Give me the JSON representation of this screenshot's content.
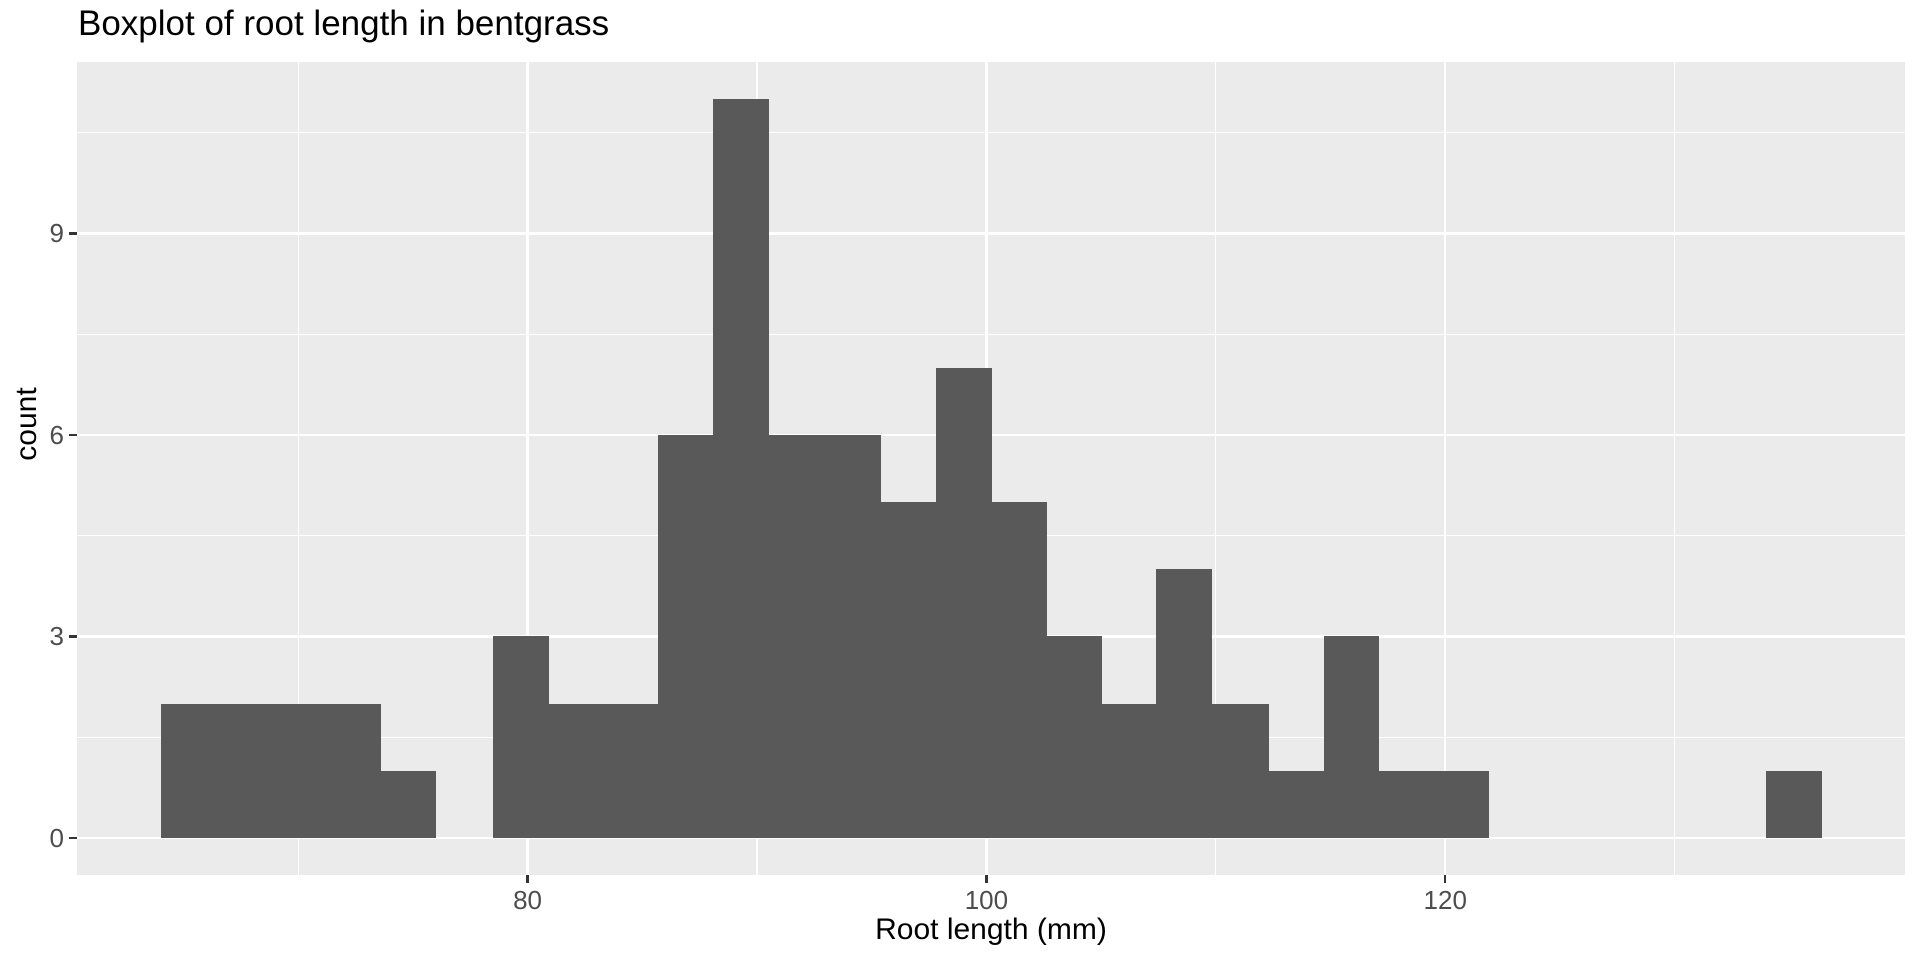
{
  "figure": {
    "title": "Boxplot of root length in bentgrass",
    "x_axis_label": "Root length (mm)",
    "y_axis_label": "count"
  },
  "chart_data": {
    "type": "bar",
    "subtype": "histogram",
    "title": "Boxplot of root length in bentgrass",
    "xlabel": "Root length (mm)",
    "ylabel": "count",
    "bin_edges": [
      64.0,
      66.4,
      68.8,
      71.2,
      73.6,
      76.0,
      78.5,
      80.9,
      83.3,
      85.7,
      88.1,
      90.5,
      93.0,
      95.4,
      97.8,
      100.2,
      102.6,
      105.0,
      107.4,
      109.8,
      112.3,
      114.7,
      117.1,
      119.5,
      121.9,
      124.3,
      126.7,
      129.2,
      131.6,
      134.0,
      136.4
    ],
    "counts": [
      2,
      2,
      2,
      2,
      1,
      0,
      3,
      2,
      2,
      6,
      11,
      6,
      6,
      5,
      7,
      5,
      3,
      2,
      4,
      2,
      1,
      3,
      1,
      1,
      0,
      0,
      0,
      0,
      0,
      1
    ],
    "x_ticks": [
      80,
      100,
      120
    ],
    "x_tick_labels": [
      "80",
      "100",
      "120"
    ],
    "x_minor_ticks": [
      70,
      90,
      110,
      130
    ],
    "y_ticks": [
      0,
      3,
      6,
      9
    ],
    "y_tick_labels": [
      "0",
      "3",
      "6",
      "9"
    ],
    "y_minor_ticks": [
      1.5,
      4.5,
      7.5,
      10.5
    ],
    "x_domain": [
      60.36,
      140.04
    ],
    "y_domain": [
      -0.55,
      11.55
    ],
    "grid": true,
    "legend": false,
    "colors": {
      "panel_bg": "#EBEBEB",
      "bar_fill": "#595959",
      "gridline": "#FFFFFF",
      "axis_text": "#4D4D4D",
      "tick_mark": "#333333",
      "title_text": "#000000"
    }
  }
}
